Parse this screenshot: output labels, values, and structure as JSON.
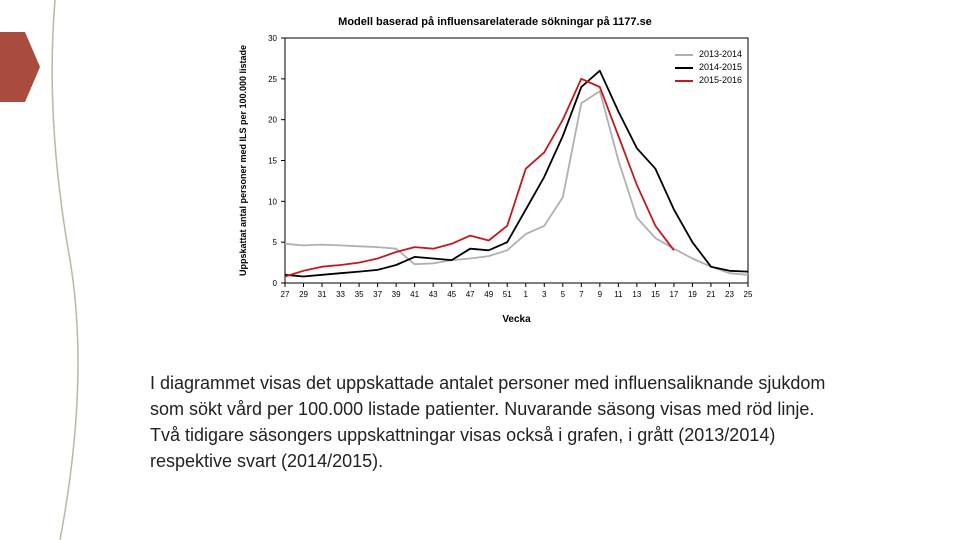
{
  "accent_color": "#a94b3e",
  "deco_line_color": "#8a8a67",
  "chart": {
    "type": "line",
    "title": "Modell baserad på influensarelaterade sökningar på 1177.se",
    "title_fontsize": 11,
    "background_color": "#ffffff",
    "plot_bg": "#ffffff",
    "axis_color": "#000000",
    "xlabel": "Vecka",
    "ylabel": "Uppskattat antal personer med ILS per 100.000 listade",
    "label_fontsize": 9,
    "tick_fontsize": 8,
    "x_ticks": [
      "27",
      "29",
      "31",
      "33",
      "35",
      "37",
      "39",
      "41",
      "43",
      "45",
      "47",
      "49",
      "51",
      "1",
      "3",
      "5",
      "7",
      "9",
      "11",
      "13",
      "15",
      "17",
      "19",
      "21",
      "23",
      "25"
    ],
    "ylim": [
      0,
      30
    ],
    "ytick_step": 5,
    "line_width": 1.8,
    "legend_fontsize": 9,
    "series": [
      {
        "name": "2013-2014",
        "color": "#b0b0b0",
        "y": [
          4.8,
          4.6,
          4.7,
          4.6,
          4.5,
          4.4,
          4.2,
          2.3,
          2.4,
          2.8,
          3.0,
          3.3,
          4.0,
          6.0,
          7.0,
          10.5,
          22.0,
          23.5,
          15.0,
          8.0,
          5.5,
          4.2,
          3.0,
          2.0,
          1.2,
          1.0
        ]
      },
      {
        "name": "2014-2015",
        "color": "#000000",
        "y": [
          1.0,
          0.8,
          1.0,
          1.2,
          1.4,
          1.6,
          2.2,
          3.2,
          3.0,
          2.8,
          4.2,
          4.0,
          5.0,
          9.0,
          13.0,
          18.0,
          24.0,
          26.0,
          21.0,
          16.5,
          14.0,
          9.0,
          5.0,
          2.0,
          1.5,
          1.4
        ]
      },
      {
        "name": "2015-2016",
        "color": "#c21b1b",
        "y": [
          0.8,
          1.5,
          2.0,
          2.2,
          2.5,
          3.0,
          3.8,
          4.4,
          4.2,
          4.8,
          5.8,
          5.2,
          7.0,
          14.0,
          16.0,
          20.0,
          25.0,
          24.0,
          18.0,
          12.0,
          7.0,
          4.0,
          null,
          null,
          null,
          null
        ]
      }
    ]
  },
  "caption_lines": [
    "I diagrammet visas det uppskattade antalet personer med",
    "influensaliknande sjukdom som sökt vård per 100.000 listade",
    "patienter. Nuvarande säsong visas med röd linje. Två tidigare",
    "säsongers uppskattningar visas också i grafen, i grått",
    "(2013/2014) respektive svart (2014/2015)."
  ]
}
